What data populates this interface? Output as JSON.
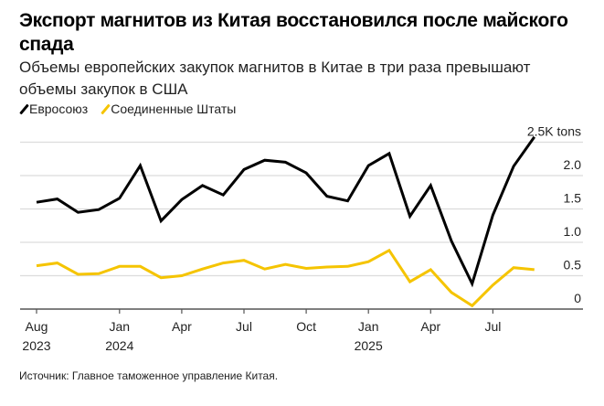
{
  "title": "Экспорт магнитов из Китая восстановился после майского спада",
  "subtitle": "Объемы европейских закупок магнитов в Китае в три раза превышают объемы закупок в США",
  "source": "Источник: Главное таможенное управление Китая.",
  "chart_data": {
    "type": "line",
    "title": "Экспорт магнитов из Китая восстановился после майского спада",
    "subtitle": "Объемы европейских закупок магнитов в Китае в три раза превышают объемы закупок в США",
    "x_ticks": [
      {
        "index": 0,
        "label": "Aug",
        "year": "2023"
      },
      {
        "index": 4,
        "label": "Jan",
        "year": "2024"
      },
      {
        "index": 7,
        "label": "Apr",
        "year": ""
      },
      {
        "index": 10,
        "label": "Jul",
        "year": ""
      },
      {
        "index": 13,
        "label": "Oct",
        "year": ""
      },
      {
        "index": 16,
        "label": "Jan",
        "year": "2025"
      },
      {
        "index": 19,
        "label": "Apr",
        "year": ""
      },
      {
        "index": 22,
        "label": "Jul",
        "year": ""
      }
    ],
    "y_ticks": [
      {
        "value": 0,
        "label": "0"
      },
      {
        "value": 0.5,
        "label": "0.5"
      },
      {
        "value": 1.0,
        "label": "1.0"
      },
      {
        "value": 1.5,
        "label": "1.5"
      },
      {
        "value": 2.0,
        "label": "2.0"
      },
      {
        "value": 2.5,
        "label": "2.5K tons"
      }
    ],
    "ylim": [
      0,
      2.5
    ],
    "grid": true,
    "legend_placement": "top-left",
    "series": [
      {
        "name": "Евросоюз",
        "color": "#000000",
        "values": [
          1.6,
          1.65,
          1.45,
          1.49,
          1.66,
          2.15,
          1.32,
          1.64,
          1.85,
          1.71,
          2.09,
          2.23,
          2.2,
          2.04,
          1.69,
          1.62,
          2.15,
          2.33,
          1.39,
          1.85,
          1.02,
          0.38,
          1.41,
          2.14,
          2.58
        ]
      },
      {
        "name": "Соединенные Штаты",
        "color": "#f5c400",
        "values": [
          0.65,
          0.69,
          0.52,
          0.53,
          0.64,
          0.64,
          0.47,
          0.5,
          0.6,
          0.69,
          0.73,
          0.6,
          0.67,
          0.61,
          0.63,
          0.64,
          0.71,
          0.88,
          0.41,
          0.59,
          0.25,
          0.05,
          0.36,
          0.62,
          0.59
        ]
      }
    ]
  }
}
